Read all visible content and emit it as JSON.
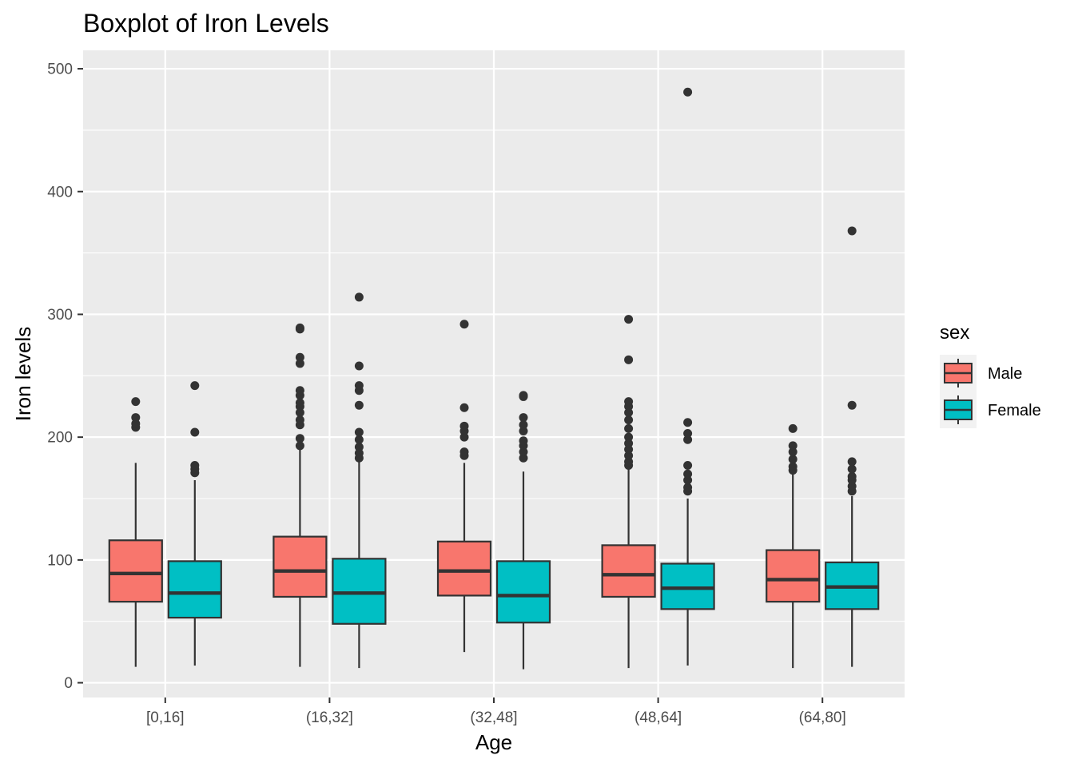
{
  "chart_data": {
    "type": "boxplot",
    "title": "Boxplot of Iron Levels",
    "xlabel": "Age",
    "ylabel": "Iron levels",
    "ylim": [
      -12,
      515
    ],
    "yticks": [
      0,
      100,
      200,
      300,
      400,
      500
    ],
    "categories": [
      "[0,16]",
      "(16,32]",
      "(32,48]",
      "(48,64]",
      "(64,80]"
    ],
    "grid": true,
    "legend": {
      "title": "sex",
      "position": "right"
    },
    "series": [
      {
        "name": "Male",
        "color": "#F8766D",
        "boxes": [
          {
            "min": 13,
            "q1": 66,
            "median": 89,
            "q3": 116,
            "max": 179,
            "outliers": [
              208,
              211,
              216,
              229
            ]
          },
          {
            "min": 13,
            "q1": 70,
            "median": 91,
            "q3": 119,
            "max": 192,
            "outliers": [
              193,
              199,
              210,
              214,
              220,
              225,
              228,
              234,
              238,
              260,
              265,
              288,
              289
            ]
          },
          {
            "min": 25,
            "q1": 71,
            "median": 91,
            "q3": 115,
            "max": 179,
            "outliers": [
              185,
              188,
              200,
              205,
              209,
              224,
              292
            ]
          },
          {
            "min": 12,
            "q1": 70,
            "median": 88,
            "q3": 112,
            "max": 175,
            "outliers": [
              177,
              180,
              185,
              190,
              195,
              200,
              207,
              214,
              220,
              225,
              229,
              263,
              296
            ]
          },
          {
            "min": 12,
            "q1": 66,
            "median": 84,
            "q3": 108,
            "max": 170,
            "outliers": [
              173,
              176,
              182,
              188,
              193,
              207
            ]
          }
        ]
      },
      {
        "name": "Female",
        "color": "#00BFC4",
        "boxes": [
          {
            "min": 14,
            "q1": 53,
            "median": 73,
            "q3": 99,
            "max": 165,
            "outliers": [
              171,
              174,
              177,
              204,
              242
            ]
          },
          {
            "min": 12,
            "q1": 48,
            "median": 73,
            "q3": 101,
            "max": 180,
            "outliers": [
              183,
              187,
              192,
              198,
              204,
              226,
              238,
              242,
              258,
              314
            ]
          },
          {
            "min": 11,
            "q1": 49,
            "median": 71,
            "q3": 99,
            "max": 172,
            "outliers": [
              183,
              188,
              193,
              197,
              205,
              210,
              216,
              233,
              234
            ]
          },
          {
            "min": 14,
            "q1": 60,
            "median": 77,
            "q3": 97,
            "max": 150,
            "outliers": [
              156,
              159,
              165,
              170,
              177,
              198,
              203,
              212,
              481
            ]
          },
          {
            "min": 13,
            "q1": 60,
            "median": 78,
            "q3": 98,
            "max": 152,
            "outliers": [
              156,
              160,
              165,
              168,
              174,
              180,
              226,
              368
            ]
          }
        ]
      }
    ]
  }
}
